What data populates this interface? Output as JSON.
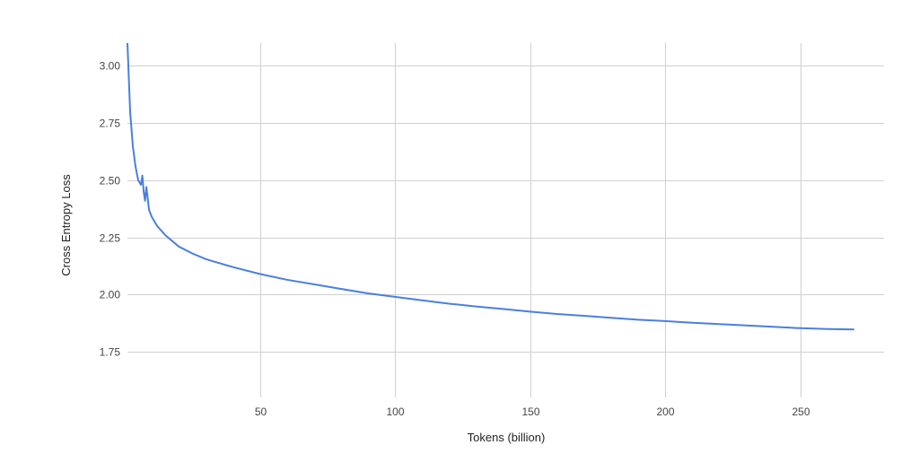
{
  "chart_data": {
    "type": "line",
    "title": "",
    "xlabel": "Tokens (billion)",
    "ylabel": "Cross Entropy Loss",
    "xlim": [
      1,
      281
    ],
    "ylim": [
      1.55,
      3.1
    ],
    "xticks": [
      50,
      100,
      150,
      200,
      250
    ],
    "xtick_labels": [
      "50",
      "100",
      "150",
      "200",
      "250"
    ],
    "yticks": [
      1.75,
      2.0,
      2.25,
      2.5,
      2.75,
      3.0
    ],
    "ytick_labels": [
      "1.75",
      "2.00",
      "2.25",
      "2.50",
      "2.75",
      "3.00"
    ],
    "grid": true,
    "legend": "none",
    "series": [
      {
        "color": "#4a7fe0",
        "x": [
          1,
          2,
          3,
          4,
          5,
          6,
          6.5,
          7,
          7.5,
          8,
          9,
          10,
          12,
          15,
          20,
          25,
          30,
          40,
          50,
          60,
          70,
          80,
          90,
          100,
          110,
          120,
          130,
          140,
          150,
          160,
          170,
          180,
          190,
          200,
          210,
          220,
          230,
          240,
          250,
          260,
          270
        ],
        "y": [
          3.1,
          2.8,
          2.65,
          2.56,
          2.5,
          2.48,
          2.52,
          2.45,
          2.41,
          2.47,
          2.37,
          2.34,
          2.3,
          2.26,
          2.21,
          2.18,
          2.155,
          2.12,
          2.09,
          2.065,
          2.045,
          2.025,
          2.005,
          1.99,
          1.975,
          1.96,
          1.948,
          1.937,
          1.925,
          1.915,
          1.907,
          1.898,
          1.89,
          1.884,
          1.877,
          1.871,
          1.865,
          1.859,
          1.853,
          1.849,
          1.847
        ]
      }
    ]
  }
}
